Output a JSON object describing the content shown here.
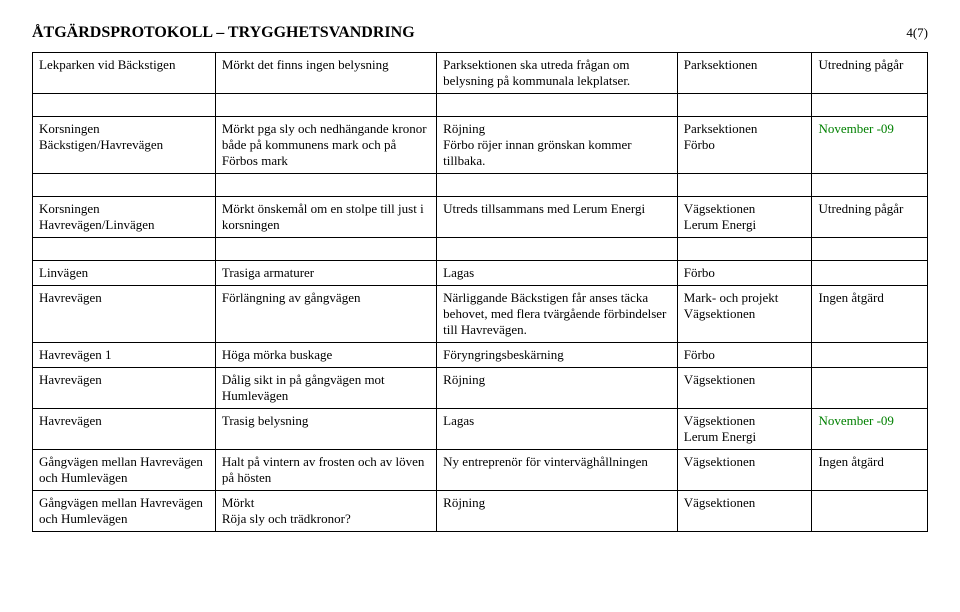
{
  "header": {
    "title": "ÅTGÄRDSPROTOKOLL – TRYGGHETSVANDRING",
    "page": "4(7)"
  },
  "rows": [
    {
      "c1": "Lekparken vid Bäckstigen",
      "c2": "Mörkt det finns ingen belysning",
      "c3": "Parksektionen ska utreda frågan om belysning på kommunala lekplatser.",
      "c4": "Parksektionen",
      "c5": "Utredning pågår"
    },
    {
      "c1": "Korsningen Bäckstigen/Havrevägen",
      "c2": "Mörkt pga sly och nedhängande kronor både på kommunens mark och på Förbos mark",
      "c3": "Röjning\nFörbo röjer innan grönskan kommer tillbaka.",
      "c4": "Parksektionen\nFörbo",
      "c5": "November -09",
      "c5_color": "#008000"
    },
    {
      "c1": "Korsningen Havrevägen/Linvägen",
      "c2": "Mörkt önskemål om en stolpe till just i korsningen",
      "c3": "Utreds tillsammans med Lerum Energi",
      "c4": "Vägsektionen\nLerum Energi",
      "c5": "Utredning pågår"
    },
    {
      "c1": "Linvägen",
      "c2": "Trasiga armaturer",
      "c3": "Lagas",
      "c4": "Förbo",
      "c5": ""
    },
    {
      "c1": "Havrevägen",
      "c2": "Förlängning av gångvägen",
      "c3": "Närliggande Bäckstigen får anses täcka behovet, med flera tvärgående förbindelser till Havrevägen.",
      "c4": "Mark- och projekt\nVägsektionen",
      "c5": "Ingen åtgärd"
    },
    {
      "c1": "Havrevägen 1",
      "c2": "Höga mörka buskage",
      "c3": "Föryngringsbeskärning",
      "c4": "Förbo",
      "c5": ""
    },
    {
      "c1": "Havrevägen",
      "c2": "Dålig sikt in på gångvägen mot Humlevägen",
      "c3": "Röjning",
      "c4": "Vägsektionen",
      "c5": ""
    },
    {
      "c1": "Havrevägen",
      "c2": "Trasig belysning",
      "c3": "Lagas",
      "c4": "Vägsektionen\nLerum Energi",
      "c5": "November -09",
      "c5_color": "#008000"
    },
    {
      "c1": "Gångvägen mellan Havrevägen och Humlevägen",
      "c2": "Halt på vintern av frosten och av löven på hösten",
      "c3": "Ny entreprenör för vinterväghållningen",
      "c4": "Vägsektionen",
      "c5": "Ingen åtgärd"
    },
    {
      "c1": "Gångvägen mellan Havrevägen och Humlevägen",
      "c2": "Mörkt\nRöja sly och trädkronor?",
      "c3": "Röjning",
      "c4": "Vägsektionen",
      "c5": ""
    }
  ],
  "layout": {
    "gap_after_indices": [
      0,
      1,
      2
    ],
    "collapsed_from_index": 3
  }
}
